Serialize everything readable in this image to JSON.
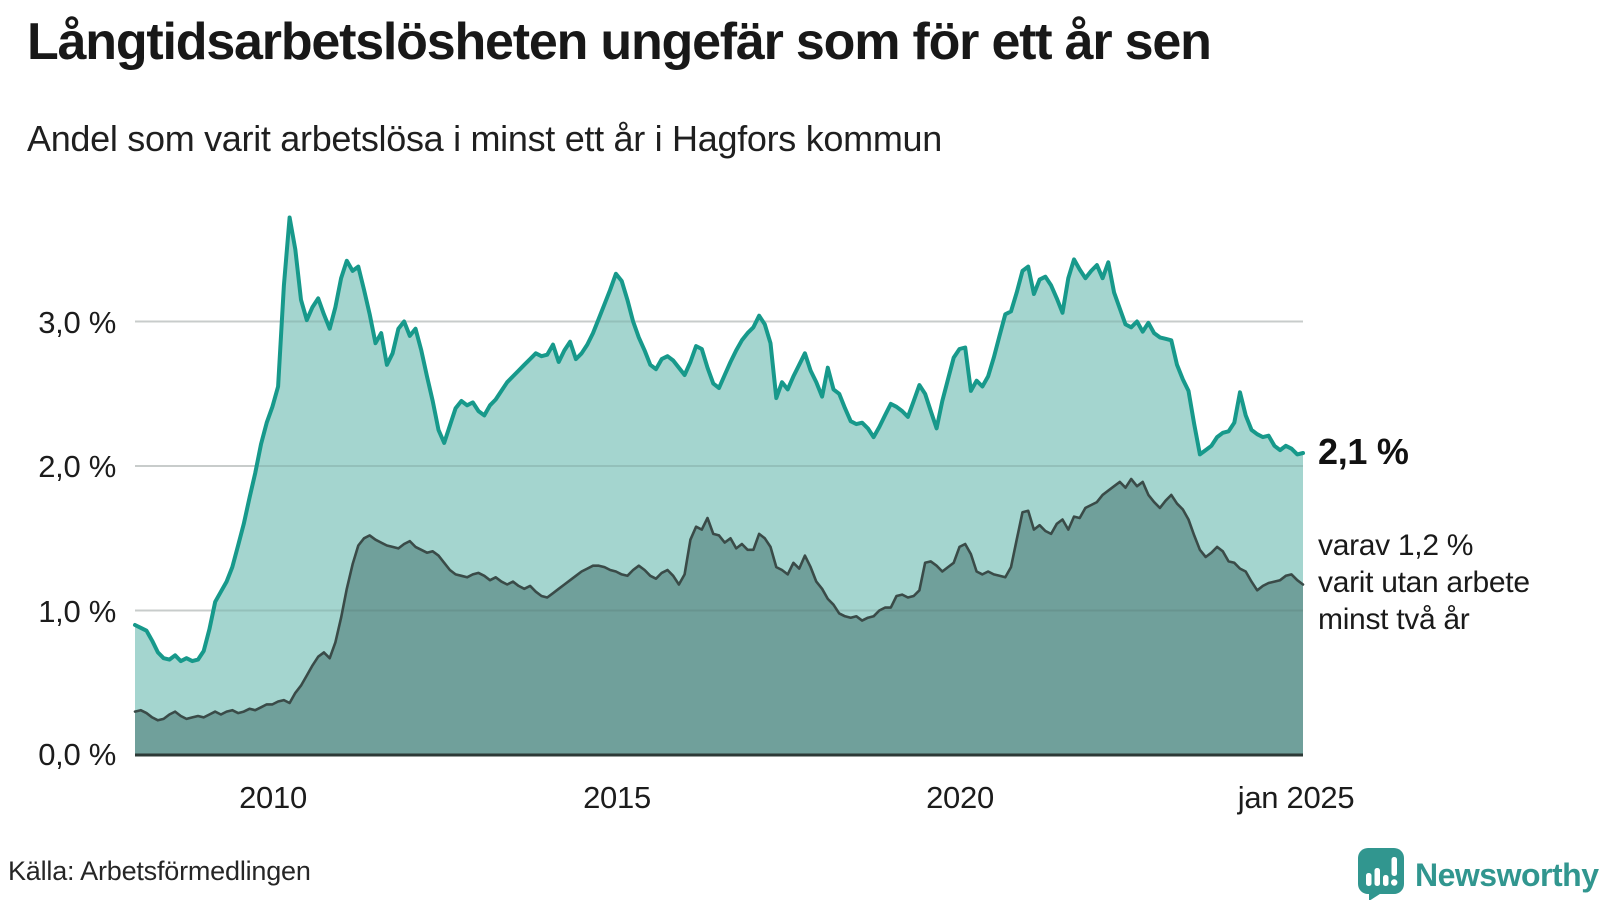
{
  "title": "Långtidsarbetslösheten ungefär som för ett år sen",
  "subtitle": "Andel som varit arbetslösa i minst ett år i Hagfors kommun",
  "source": "Källa: Arbetsförmedlingen",
  "brand": {
    "name": "Newsworthy",
    "color": "#31968f"
  },
  "annotations": {
    "latest_total": "2,1 %",
    "note_line1": "varav 1,2 %",
    "note_line2": "varit utan arbete",
    "note_line3": "minst två år"
  },
  "chart_data": {
    "type": "area",
    "title": "Långtidsarbetslösheten ungefär som för ett år sen",
    "subtitle": "Andel som varit arbetslösa i minst ett år i Hagfors kommun",
    "unit": "%",
    "frequency": "monthly",
    "x_start": "jan 2008",
    "x_end": "jan 2025",
    "ylim": [
      0,
      3.9
    ],
    "grid": "horizontal",
    "legend": "none",
    "y_axis": {
      "tick_values": [
        3.0,
        2.0,
        1.0,
        0.0
      ],
      "tick_labels": [
        "3,0 %",
        "2,0 %",
        "1,0 %",
        "0,0 %"
      ]
    },
    "x_axis": {
      "tick_labels": [
        "2010",
        "2015",
        "2020",
        "jan 2025"
      ],
      "tick_years": [
        2010,
        2015,
        2020,
        2025.04
      ]
    },
    "series": [
      {
        "name": "Arbetslösa minst ett år",
        "latest_label": "2,1 %",
        "line_color": "#17998b",
        "fill_color": "#a4d5cf",
        "values": [
          0.9,
          0.88,
          0.86,
          0.79,
          0.71,
          0.67,
          0.66,
          0.69,
          0.65,
          0.67,
          0.65,
          0.66,
          0.72,
          0.87,
          1.06,
          1.13,
          1.2,
          1.3,
          1.45,
          1.6,
          1.78,
          1.95,
          2.15,
          2.3,
          2.41,
          2.55,
          3.25,
          3.72,
          3.5,
          3.15,
          3.01,
          3.1,
          3.16,
          3.05,
          2.95,
          3.1,
          3.3,
          3.42,
          3.35,
          3.38,
          3.22,
          3.05,
          2.85,
          2.92,
          2.7,
          2.78,
          2.95,
          3.0,
          2.9,
          2.95,
          2.8,
          2.62,
          2.45,
          2.25,
          2.16,
          2.28,
          2.4,
          2.45,
          2.42,
          2.44,
          2.38,
          2.35,
          2.42,
          2.46,
          2.52,
          2.58,
          2.62,
          2.66,
          2.7,
          2.74,
          2.78,
          2.76,
          2.77,
          2.84,
          2.72,
          2.8,
          2.86,
          2.74,
          2.78,
          2.84,
          2.92,
          3.02,
          3.12,
          3.22,
          3.33,
          3.28,
          3.15,
          3.0,
          2.89,
          2.8,
          2.7,
          2.67,
          2.74,
          2.76,
          2.73,
          2.68,
          2.63,
          2.72,
          2.83,
          2.81,
          2.68,
          2.57,
          2.54,
          2.63,
          2.72,
          2.8,
          2.87,
          2.92,
          2.96,
          3.04,
          2.98,
          2.85,
          2.47,
          2.58,
          2.53,
          2.62,
          2.7,
          2.78,
          2.66,
          2.58,
          2.48,
          2.68,
          2.53,
          2.5,
          2.4,
          2.31,
          2.29,
          2.3,
          2.26,
          2.2,
          2.27,
          2.35,
          2.43,
          2.41,
          2.38,
          2.34,
          2.45,
          2.56,
          2.5,
          2.38,
          2.26,
          2.45,
          2.6,
          2.75,
          2.81,
          2.82,
          2.52,
          2.59,
          2.55,
          2.62,
          2.75,
          2.9,
          3.05,
          3.07,
          3.2,
          3.35,
          3.38,
          3.19,
          3.29,
          3.31,
          3.25,
          3.16,
          3.06,
          3.3,
          3.43,
          3.36,
          3.3,
          3.35,
          3.39,
          3.3,
          3.41,
          3.2,
          3.09,
          2.98,
          2.96,
          3.0,
          2.93,
          2.99,
          2.92,
          2.89,
          2.88,
          2.87,
          2.7,
          2.6,
          2.52,
          2.29,
          2.08,
          2.11,
          2.14,
          2.2,
          2.23,
          2.24,
          2.3,
          2.51,
          2.35,
          2.25,
          2.22,
          2.2,
          2.21,
          2.14,
          2.11,
          2.14,
          2.12,
          2.08,
          2.09
        ]
      },
      {
        "name": "Arbetslösa minst två år",
        "latest_label": "1,2 %",
        "line_color": "#3a4b48",
        "fill_color": "#70a09b",
        "values": [
          0.3,
          0.31,
          0.29,
          0.26,
          0.24,
          0.25,
          0.28,
          0.3,
          0.27,
          0.25,
          0.26,
          0.27,
          0.26,
          0.28,
          0.3,
          0.28,
          0.3,
          0.31,
          0.29,
          0.3,
          0.32,
          0.31,
          0.33,
          0.35,
          0.35,
          0.37,
          0.38,
          0.36,
          0.43,
          0.48,
          0.55,
          0.62,
          0.68,
          0.71,
          0.67,
          0.78,
          0.95,
          1.15,
          1.32,
          1.45,
          1.5,
          1.52,
          1.49,
          1.47,
          1.45,
          1.44,
          1.43,
          1.46,
          1.48,
          1.44,
          1.42,
          1.4,
          1.41,
          1.38,
          1.33,
          1.28,
          1.25,
          1.24,
          1.23,
          1.25,
          1.26,
          1.24,
          1.21,
          1.23,
          1.2,
          1.18,
          1.2,
          1.17,
          1.15,
          1.17,
          1.13,
          1.1,
          1.09,
          1.12,
          1.15,
          1.18,
          1.21,
          1.24,
          1.27,
          1.29,
          1.31,
          1.31,
          1.3,
          1.28,
          1.27,
          1.25,
          1.24,
          1.28,
          1.31,
          1.28,
          1.24,
          1.22,
          1.26,
          1.28,
          1.24,
          1.18,
          1.25,
          1.49,
          1.58,
          1.56,
          1.64,
          1.53,
          1.52,
          1.47,
          1.5,
          1.43,
          1.46,
          1.42,
          1.42,
          1.53,
          1.5,
          1.44,
          1.3,
          1.28,
          1.25,
          1.33,
          1.29,
          1.38,
          1.3,
          1.2,
          1.15,
          1.08,
          1.04,
          0.98,
          0.96,
          0.95,
          0.96,
          0.93,
          0.95,
          0.96,
          1.0,
          1.02,
          1.02,
          1.1,
          1.11,
          1.09,
          1.1,
          1.14,
          1.33,
          1.34,
          1.31,
          1.27,
          1.3,
          1.33,
          1.44,
          1.46,
          1.39,
          1.27,
          1.25,
          1.27,
          1.25,
          1.24,
          1.23,
          1.3,
          1.49,
          1.68,
          1.69,
          1.56,
          1.59,
          1.55,
          1.53,
          1.6,
          1.63,
          1.56,
          1.65,
          1.64,
          1.71,
          1.73,
          1.75,
          1.8,
          1.83,
          1.86,
          1.89,
          1.85,
          1.91,
          1.86,
          1.89,
          1.8,
          1.75,
          1.71,
          1.76,
          1.8,
          1.74,
          1.7,
          1.63,
          1.52,
          1.42,
          1.37,
          1.4,
          1.44,
          1.41,
          1.34,
          1.33,
          1.29,
          1.27,
          1.2,
          1.14,
          1.17,
          1.19,
          1.2,
          1.21,
          1.24,
          1.25,
          1.21,
          1.18
        ]
      }
    ]
  }
}
